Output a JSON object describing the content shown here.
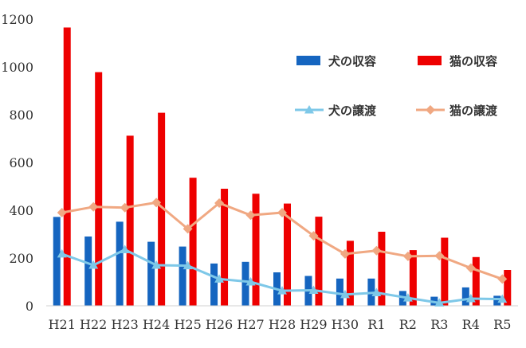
{
  "chart_data": {
    "type": "bar+line",
    "categories": [
      "H21",
      "H22",
      "H23",
      "H24",
      "H25",
      "H26",
      "H27",
      "H28",
      "H29",
      "H30",
      "R1",
      "R2",
      "R3",
      "R4",
      "R5"
    ],
    "ylim": [
      0,
      1200
    ],
    "yticks": [
      0,
      200,
      400,
      600,
      800,
      1000,
      1200
    ],
    "grid": false,
    "legend_position": "top-right",
    "series": [
      {
        "name": "犬の収容",
        "kind": "bar",
        "color": "#1565C0",
        "values": [
          372,
          290,
          352,
          268,
          248,
          177,
          184,
          140,
          125,
          114,
          114,
          62,
          38,
          77,
          42
        ]
      },
      {
        "name": "猫の収容",
        "kind": "bar",
        "color": "#EE0000",
        "values": [
          1165,
          978,
          712,
          808,
          536,
          490,
          469,
          428,
          373,
          272,
          310,
          233,
          285,
          204,
          150
        ]
      },
      {
        "name": "犬の譲渡",
        "kind": "line",
        "color": "#7EC8E8",
        "marker": "triangle",
        "values": [
          217,
          170,
          235,
          170,
          168,
          112,
          100,
          63,
          65,
          47,
          55,
          33,
          12,
          30,
          28
        ]
      },
      {
        "name": "猫の譲渡",
        "kind": "line",
        "color": "#F0A882",
        "marker": "diamond",
        "values": [
          390,
          414,
          411,
          432,
          322,
          430,
          379,
          390,
          293,
          217,
          231,
          207,
          209,
          158,
          112
        ]
      }
    ]
  }
}
